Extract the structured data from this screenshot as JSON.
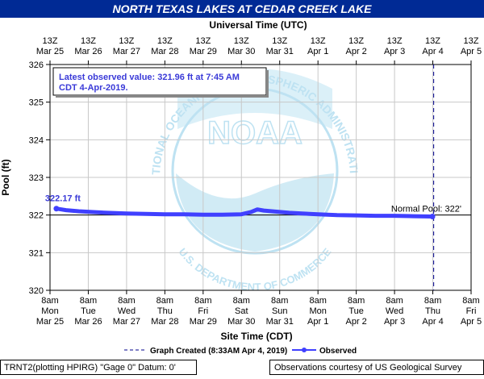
{
  "title": "NORTH TEXAS LAKES AT CEDAR CREEK LAKE",
  "top_axis_label": "Universal Time (UTC)",
  "top_ticks": [
    {
      "hour": "13Z",
      "date": "Mar 25"
    },
    {
      "hour": "13Z",
      "date": "Mar 26"
    },
    {
      "hour": "13Z",
      "date": "Mar 27"
    },
    {
      "hour": "13Z",
      "date": "Mar 28"
    },
    {
      "hour": "13Z",
      "date": "Mar 29"
    },
    {
      "hour": "13Z",
      "date": "Mar 30"
    },
    {
      "hour": "13Z",
      "date": "Mar 31"
    },
    {
      "hour": "13Z",
      "date": "Apr 1"
    },
    {
      "hour": "13Z",
      "date": "Apr 2"
    },
    {
      "hour": "13Z",
      "date": "Apr 3"
    },
    {
      "hour": "13Z",
      "date": "Apr 4"
    },
    {
      "hour": "13Z",
      "date": "Apr 5"
    }
  ],
  "bottom_ticks": [
    {
      "time": "8am",
      "day": "Mon",
      "date": "Mar 25"
    },
    {
      "time": "8am",
      "day": "Tue",
      "date": "Mar 26"
    },
    {
      "time": "8am",
      "day": "Wed",
      "date": "Mar 27"
    },
    {
      "time": "8am",
      "day": "Thu",
      "date": "Mar 28"
    },
    {
      "time": "8am",
      "day": "Fri",
      "date": "Mar 29"
    },
    {
      "time": "8am",
      "day": "Sat",
      "date": "Mar 30"
    },
    {
      "time": "8am",
      "day": "Sun",
      "date": "Mar 31"
    },
    {
      "time": "8am",
      "day": "Mon",
      "date": "Apr 1"
    },
    {
      "time": "8am",
      "day": "Tue",
      "date": "Apr 2"
    },
    {
      "time": "8am",
      "day": "Wed",
      "date": "Apr 3"
    },
    {
      "time": "8am",
      "day": "Thu",
      "date": "Apr 4"
    },
    {
      "time": "8am",
      "day": "Fri",
      "date": "Apr 5"
    }
  ],
  "latest_box": {
    "line1": "Latest observed value: 321.96 ft at 7:45 AM",
    "line2": "CDT 4-Apr-2019."
  },
  "start_label": "322.17 ft",
  "normal_pool_label": "Normal Pool: 322'",
  "legend": {
    "created_label": "Graph Created (8:33AM Apr 4, 2019)",
    "observed_label": "Observed"
  },
  "footer": {
    "left": "TRNT2(plotting HPIRG) \"Gage 0\" Datum: 0'",
    "right": "Observations courtesy of US Geological Survey"
  },
  "watermark": {
    "logo_text": "NOAA",
    "ring_text": "NATIONAL OCEANIC AND ATMOSPHERIC ADMINISTRATION",
    "bottom_text": "U.S. DEPARTMENT OF COMMERCE"
  },
  "colors": {
    "title_bg": "#002a95",
    "title_fg": "#ffffff",
    "series": "#4040ff",
    "grid": "#c8c8c8",
    "box_fg": "#3a3ad8",
    "watermark": "#b3def0"
  },
  "chart_data": {
    "type": "line",
    "title": "NORTH TEXAS LAKES AT CEDAR CREEK LAKE",
    "xlabel": "Site Time (CDT)",
    "ylabel": "Pool (ft)",
    "ylim": [
      320,
      326
    ],
    "yticks": [
      320,
      321,
      322,
      323,
      324,
      325,
      326
    ],
    "xlim": [
      "2019-03-25 08:00",
      "2019-04-05 08:00"
    ],
    "x_unit": "CDT",
    "normal_pool": 322,
    "graph_created": "2019-04-04 08:33",
    "grid": true,
    "series": [
      {
        "name": "Observed",
        "x": [
          "2019-03-25 12:00",
          "2019-03-25 18:00",
          "2019-03-26 02:00",
          "2019-03-26 10:00",
          "2019-03-26 20:00",
          "2019-03-27 08:00",
          "2019-03-27 20:00",
          "2019-03-28 08:00",
          "2019-03-28 20:00",
          "2019-03-29 08:00",
          "2019-03-29 20:00",
          "2019-03-30 08:00",
          "2019-03-30 14:00",
          "2019-03-30 18:00",
          "2019-03-30 22:00",
          "2019-03-31 06:00",
          "2019-03-31 14:00",
          "2019-03-31 22:00",
          "2019-04-01 08:00",
          "2019-04-01 20:00",
          "2019-04-02 08:00",
          "2019-04-02 20:00",
          "2019-04-03 08:00",
          "2019-04-03 20:00",
          "2019-04-04 07:45"
        ],
        "y": [
          322.17,
          322.13,
          322.1,
          322.08,
          322.06,
          322.04,
          322.03,
          322.02,
          322.02,
          322.01,
          322.01,
          322.02,
          322.08,
          322.15,
          322.12,
          322.09,
          322.06,
          322.04,
          322.02,
          322.0,
          321.99,
          321.98,
          321.98,
          321.97,
          321.96
        ]
      }
    ]
  }
}
